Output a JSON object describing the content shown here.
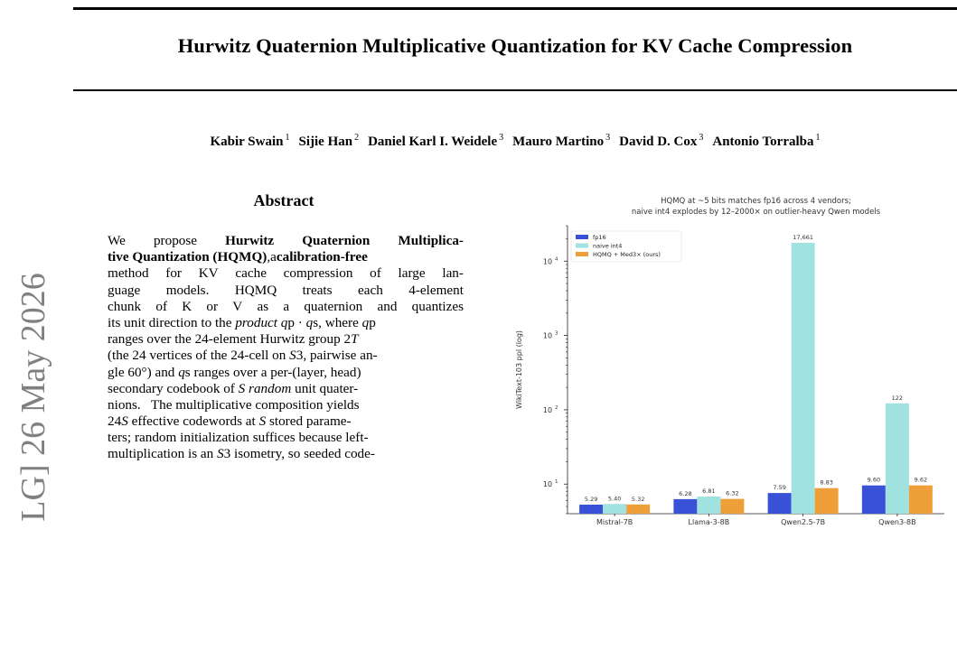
{
  "header": {
    "title": "Hurwitz Quaternion Multiplicative Quantization for KV Cache Compression"
  },
  "authors": [
    {
      "name": "Kabir Swain",
      "aff": "1"
    },
    {
      "name": "Sijie Han",
      "aff": "2"
    },
    {
      "name": "Daniel Karl I. Weidele",
      "aff": "3"
    },
    {
      "name": "Mauro Martino",
      "aff": "3"
    },
    {
      "name": "David D. Cox",
      "aff": "3"
    },
    {
      "name": "Antonio Torralba",
      "aff": "1"
    }
  ],
  "sidebar": {
    "arxiv_stamp": "LG]  26 May 2026"
  },
  "abstract": {
    "heading": "Abstract",
    "lines": [
      [
        {
          "t": "We"
        },
        {
          "t": "propose"
        },
        {
          "t": "Hurwitz",
          "s": "b"
        },
        {
          "t": "Quaternion",
          "s": "b"
        },
        {
          "t": "Multiplica-",
          "s": "b"
        }
      ],
      [
        {
          "t": "tive Quantization (HQMQ)",
          "s": "b"
        },
        {
          "t": ","
        },
        {
          "t": "a"
        },
        {
          "t": "calibration-free",
          "s": "b"
        }
      ],
      [
        {
          "t": "method"
        },
        {
          "t": "for"
        },
        {
          "t": "KV"
        },
        {
          "t": "cache"
        },
        {
          "t": "compression"
        },
        {
          "t": "of"
        },
        {
          "t": "large"
        },
        {
          "t": "lan-"
        }
      ],
      [
        {
          "t": "guage"
        },
        {
          "t": "models."
        },
        {
          "t": "HQMQ"
        },
        {
          "t": "treats"
        },
        {
          "t": "each"
        },
        {
          "t": "4-element"
        }
      ],
      [
        {
          "t": "chunk"
        },
        {
          "t": "of"
        },
        {
          "t": "K"
        },
        {
          "t": "or"
        },
        {
          "t": "V"
        },
        {
          "t": "as"
        },
        {
          "t": "a"
        },
        {
          "t": "quaternion"
        },
        {
          "t": "and"
        },
        {
          "t": "quantizes"
        }
      ],
      [
        {
          "t": "its unit direction to the "
        },
        {
          "t": "product",
          "s": "i"
        },
        {
          "t": " "
        },
        {
          "t": "q",
          "s": "i"
        },
        {
          "t": "p"
        },
        {
          "t": " · "
        },
        {
          "t": "q",
          "s": "i"
        },
        {
          "t": "s"
        },
        {
          "t": ", where "
        },
        {
          "t": "q",
          "s": "i"
        },
        {
          "t": "p"
        }
      ],
      [
        {
          "t": "ranges over the 24-element Hurwitz group 2"
        },
        {
          "t": "T",
          "s": "i"
        }
      ],
      [
        {
          "t": "(the 24 vertices of the 24-cell on "
        },
        {
          "t": "S",
          "s": "i"
        },
        {
          "t": "3"
        },
        {
          "t": ", pairwise an-"
        }
      ],
      [
        {
          "t": "gle 60°) and "
        },
        {
          "t": "q",
          "s": "i"
        },
        {
          "t": "s"
        },
        {
          "t": " ranges over a per-(layer, head)"
        }
      ],
      [
        {
          "t": "secondary codebook of "
        },
        {
          "t": "S random",
          "s": "i"
        },
        {
          "t": " unit quater-"
        }
      ],
      [
        {
          "t": "nions.   The multiplicative composition yields"
        }
      ],
      [
        {
          "t": "24"
        },
        {
          "t": "S",
          "s": "i"
        },
        {
          "t": " effective codewords at "
        },
        {
          "t": "S",
          "s": "i"
        },
        {
          "t": " stored parame-"
        }
      ],
      [
        {
          "t": "ters; random initialization suffices because left-"
        }
      ],
      [
        {
          "t": "multiplication is an "
        },
        {
          "t": "S",
          "s": "i"
        },
        {
          "t": "3"
        },
        {
          "t": " isometry, so seeded code-"
        }
      ]
    ]
  },
  "chart_data": {
    "type": "bar",
    "title": "HQMQ at  ~5 bits matches fp16 across 4 vendors;",
    "subtitle": "naive int4 explodes by 12–2000× on outlier-heavy Qwen models",
    "ylabel": "WikiText-103 ppl  (log)",
    "xlabel": "",
    "y_scale": "log",
    "ylim": [
      4.0,
      30000
    ],
    "y_ticks": [
      {
        "base": "10",
        "exp": "1",
        "value": 10
      },
      {
        "base": "10",
        "exp": "2",
        "value": 100
      },
      {
        "base": "10",
        "exp": "3",
        "value": 1000
      },
      {
        "base": "10",
        "exp": "4",
        "value": 10000
      }
    ],
    "categories": [
      "Mistral-7B",
      "Llama-3-8B",
      "Qwen2.5-7B",
      "Qwen3-8B"
    ],
    "series": [
      {
        "name": "fp16",
        "color": "#3851d6",
        "values": [
          5.29,
          6.28,
          7.59,
          9.6
        ],
        "labels": [
          "5.29",
          "6.28",
          "7.59",
          "9.60"
        ]
      },
      {
        "name": "naive int4",
        "color": "#9fe2df",
        "values": [
          5.4,
          6.81,
          17661,
          122
        ],
        "labels": [
          "5.40",
          "6.81",
          "17,661",
          "122"
        ]
      },
      {
        "name": "HQMQ + Med3× (ours)",
        "color": "#ee9f3a",
        "values": [
          5.32,
          6.32,
          8.83,
          9.62
        ],
        "labels": [
          "5.32",
          "6.32",
          "8.83",
          "9.62"
        ]
      }
    ],
    "legend_position": "top-left",
    "grid": false
  }
}
